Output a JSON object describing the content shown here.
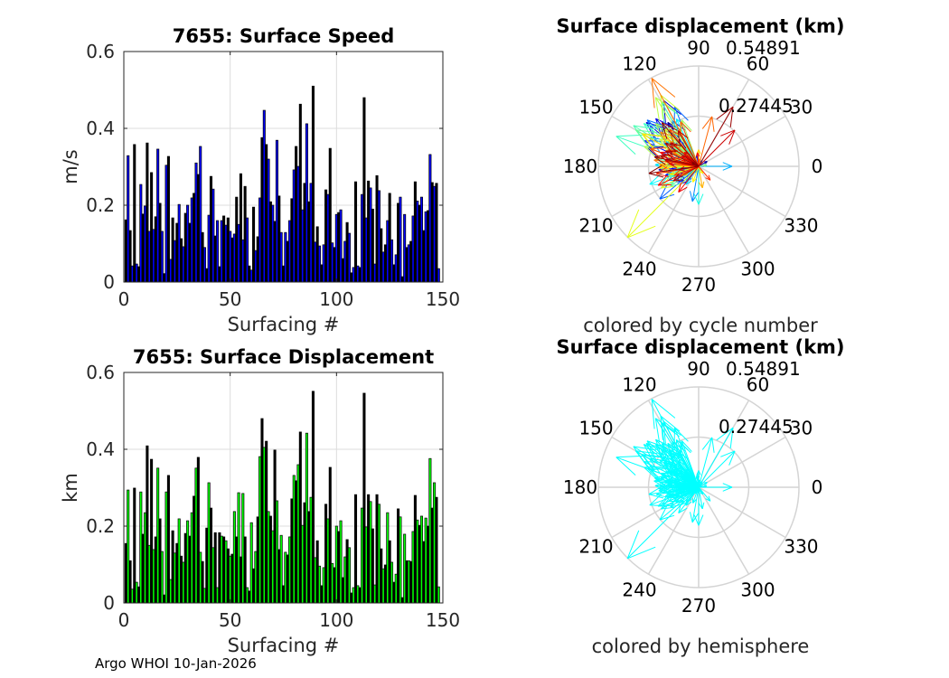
{
  "footer": "Argo WHOI 10-Jan-2026",
  "chart_data": [
    {
      "type": "bar",
      "title": "7655: Surface Speed",
      "xlabel": "Surfacing #",
      "ylabel": "m/s",
      "xlim": [
        0,
        150
      ],
      "ylim": [
        0,
        0.6
      ],
      "xticks": [
        "0",
        "50",
        "100",
        "150"
      ],
      "yticks": [
        "0",
        "0.2",
        "0.4",
        "0.6"
      ],
      "grid": true,
      "colors": [
        "#000000",
        "#0000ff"
      ],
      "values": [
        0.162,
        0.329,
        0.134,
        0.042,
        0.358,
        0.047,
        0.04,
        0.254,
        0.177,
        0.198,
        0.362,
        0.132,
        0.285,
        0.137,
        0.17,
        0.346,
        0.205,
        0.132,
        0.022,
        0.304,
        0.327,
        0.059,
        0.167,
        0.108,
        0.153,
        0.202,
        0.113,
        0.092,
        0.179,
        0.2,
        0.153,
        0.219,
        0.231,
        0.31,
        0.28,
        0.353,
        0.129,
        0.09,
        0.035,
        0.174,
        0.275,
        0.242,
        0.12,
        0.16,
        0.04,
        0.16,
        0.172,
        0.148,
        0.167,
        0.132,
        0.115,
        0.125,
        0.221,
        0.15,
        0.282,
        0.11,
        0.249,
        0.167,
        0.042,
        0.031,
        0.195,
        0.082,
        0.118,
        0.219,
        0.376,
        0.447,
        0.358,
        0.32,
        0.209,
        0.2,
        0.158,
        0.369,
        0.224,
        0.129,
        0.042,
        0.129,
        0.106,
        0.16,
        0.217,
        0.292,
        0.353,
        0.301,
        0.463,
        0.188,
        0.257,
        0.412,
        0.209,
        0.257,
        0.51,
        0.104,
        0.144,
        0.094,
        0.045,
        0.097,
        0.24,
        0.228,
        0.348,
        0.102,
        0.09,
        0.176,
        0.181,
        0.188,
        0.061,
        0.106,
        0.155,
        0.127,
        0.024,
        0.038,
        0.261,
        0.042,
        0.038,
        0.228,
        0.48,
        0.167,
        0.263,
        0.245,
        0.19,
        0.047,
        0.277,
        0.238,
        0.139,
        0.078,
        0.097,
        0.16,
        0.231,
        0.11,
        0.045,
        0.071,
        0.205,
        0.221,
        0.014,
        0.176,
        0.09,
        0.097,
        0.106,
        0.172,
        0.261,
        0.211,
        0.2,
        0.221,
        0.134,
        0.183,
        0.186,
        0.332,
        0.259,
        0.249,
        0.257,
        0.035
      ]
    },
    {
      "type": "bar",
      "title": "7655: Surface Displacement",
      "xlabel": "Surfacing #",
      "ylabel": "km",
      "xlim": [
        0,
        150
      ],
      "ylim": [
        0,
        0.6
      ],
      "xticks": [
        "0",
        "50",
        "100",
        "150"
      ],
      "yticks": [
        "0",
        "0.2",
        "0.4",
        "0.6"
      ],
      "grid": true,
      "colors": [
        "#000000",
        "#00ff00"
      ],
      "values": [
        0.155,
        0.294,
        0.11,
        0.036,
        0.299,
        0.054,
        0.042,
        0.289,
        0.179,
        0.235,
        0.409,
        0.15,
        0.374,
        0.139,
        0.172,
        0.351,
        0.219,
        0.134,
        0.021,
        0.289,
        0.332,
        0.061,
        0.188,
        0.13,
        0.155,
        0.219,
        0.122,
        0.106,
        0.181,
        0.214,
        0.174,
        0.235,
        0.278,
        0.351,
        0.379,
        0.132,
        0.108,
        0.038,
        0.195,
        0.313,
        0.247,
        0.144,
        0.183,
        0.04,
        0.183,
        0.174,
        0.172,
        0.162,
        0.141,
        0.122,
        0.127,
        0.238,
        0.172,
        0.287,
        0.12,
        0.285,
        0.172,
        0.04,
        0.031,
        0.209,
        0.089,
        0.134,
        0.224,
        0.381,
        0.48,
        0.405,
        0.421,
        0.238,
        0.226,
        0.188,
        0.398,
        0.266,
        0.139,
        0.176,
        0.045,
        0.132,
        0.125,
        0.172,
        0.271,
        0.332,
        0.318,
        0.36,
        0.445,
        0.202,
        0.261,
        0.442,
        0.238,
        0.275,
        0.551,
        0.118,
        0.162,
        0.096,
        0.045,
        0.092,
        0.257,
        0.219,
        0.353,
        0.103,
        0.092,
        0.2,
        0.186,
        0.214,
        0.066,
        0.12,
        0.165,
        0.144,
        0.026,
        0.04,
        0.282,
        0.045,
        0.04,
        0.247,
        0.546,
        0.198,
        0.282,
        0.264,
        0.193,
        0.047,
        0.282,
        0.257,
        0.141,
        0.089,
        0.099,
        0.235,
        0.162,
        0.106,
        0.054,
        0.075,
        0.245,
        0.224,
        0.014,
        0.179,
        0.11,
        0.11,
        0.108,
        0.186,
        0.28,
        0.216,
        0.202,
        0.226,
        0.16,
        0.221,
        0.2,
        0.376,
        0.247,
        0.313,
        0.275,
        0.042
      ]
    },
    {
      "type": "polar-quiver",
      "title": "Surface displacement (km)",
      "subtitle": "colored by cycle number",
      "rticks": [
        "0.27445",
        "0.54891"
      ],
      "rmax": 0.54891,
      "angle_labels": [
        "0",
        "30",
        "60",
        "90",
        "120",
        "150",
        "180",
        "210",
        "240",
        "270",
        "300",
        "330"
      ],
      "color_mode": "jet",
      "angles_deg": [
        150,
        125,
        200,
        95,
        160,
        30,
        175,
        135,
        190,
        145,
        118,
        215,
        140,
        205,
        170,
        132,
        185,
        225,
        250,
        120,
        155,
        100,
        195,
        165,
        210,
        140,
        180,
        230,
        128,
        160,
        175,
        145,
        220,
        112,
        138,
        200,
        185,
        60,
        260,
        150,
        130,
        170,
        205,
        240,
        0,
        195,
        165,
        150,
        140,
        235,
        190,
        178,
        155,
        115,
        125,
        200,
        145,
        85,
        300,
        270,
        160,
        178,
        205,
        142,
        160,
        120,
        148,
        170,
        130,
        215,
        150,
        128,
        190,
        198,
        10,
        165,
        175,
        140,
        110,
        135,
        160,
        150,
        122,
        180,
        145,
        118,
        210,
        132,
        225,
        170,
        196,
        155,
        300,
        250,
        140,
        182,
        150,
        207,
        90,
        188,
        160,
        178,
        135,
        280,
        150,
        165,
        218,
        120,
        138,
        185,
        85,
        172,
        118,
        145,
        75,
        112,
        152,
        168,
        160,
        128,
        200,
        142,
        310,
        190,
        175,
        145,
        158,
        95,
        205,
        160,
        180,
        232,
        135,
        150,
        190,
        170,
        45,
        165,
        140,
        120,
        210,
        145,
        155,
        60,
        168,
        130,
        188,
        150
      ],
      "magnitudes_source": "chart_data.1.values"
    },
    {
      "type": "polar-quiver",
      "title": "Surface displacement (km)",
      "subtitle": "colored by hemisphere",
      "rticks": [
        "0.27445",
        "0.54891"
      ],
      "rmax": 0.54891,
      "angle_labels": [
        "0",
        "30",
        "60",
        "90",
        "120",
        "150",
        "180",
        "210",
        "240",
        "270",
        "300",
        "330"
      ],
      "color_mode": "single",
      "color": "#00ffff"
    }
  ]
}
